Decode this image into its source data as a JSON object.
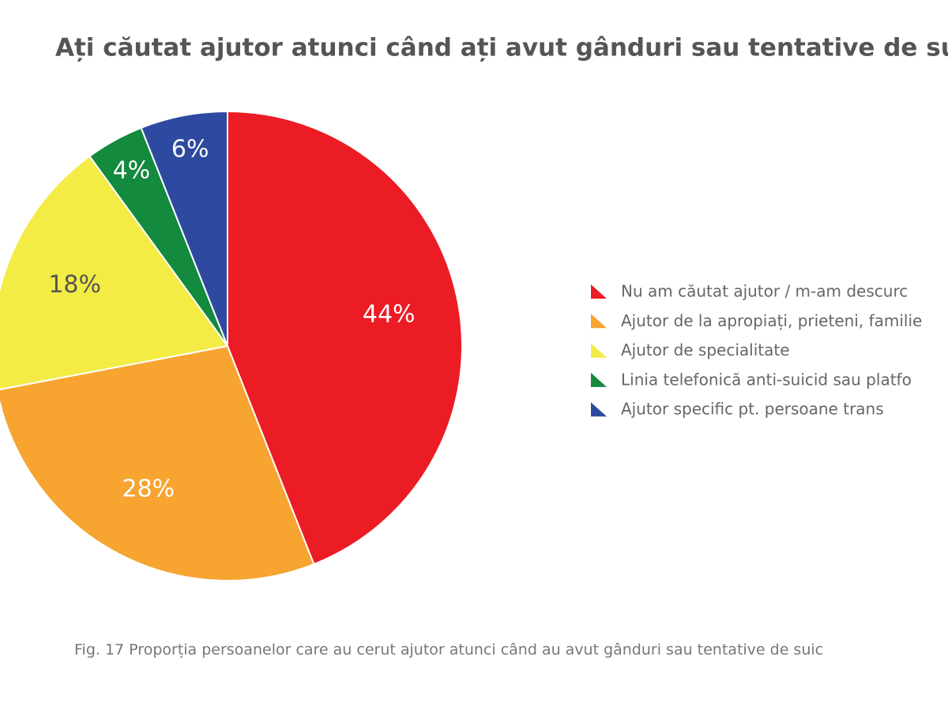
{
  "chart_data": {
    "type": "pie",
    "title": "Ați căutat ajutor atunci când ați avut gânduri sau tentative de suic",
    "caption": "Fig. 17 Proporția persoanelor care au cerut ajutor atunci când au avut gânduri sau tentative de suic",
    "categories": [
      "Nu am căutat ajutor / m-am descurc",
      "Ajutor de la apropiați, prieteni, familie",
      "Ajutor de specialitate",
      "Linia telefonică anti-suicid sau platfo",
      "Ajutor specific pt. persoane trans"
    ],
    "values": [
      44,
      28,
      18,
      4,
      6
    ],
    "value_labels": [
      "44%",
      "28%",
      "18%",
      "4%",
      "6%"
    ],
    "colors": [
      "#ec1c24",
      "#f7a430",
      "#f2ec45",
      "#138a3e",
      "#2e4aa0"
    ],
    "legend": "right"
  }
}
